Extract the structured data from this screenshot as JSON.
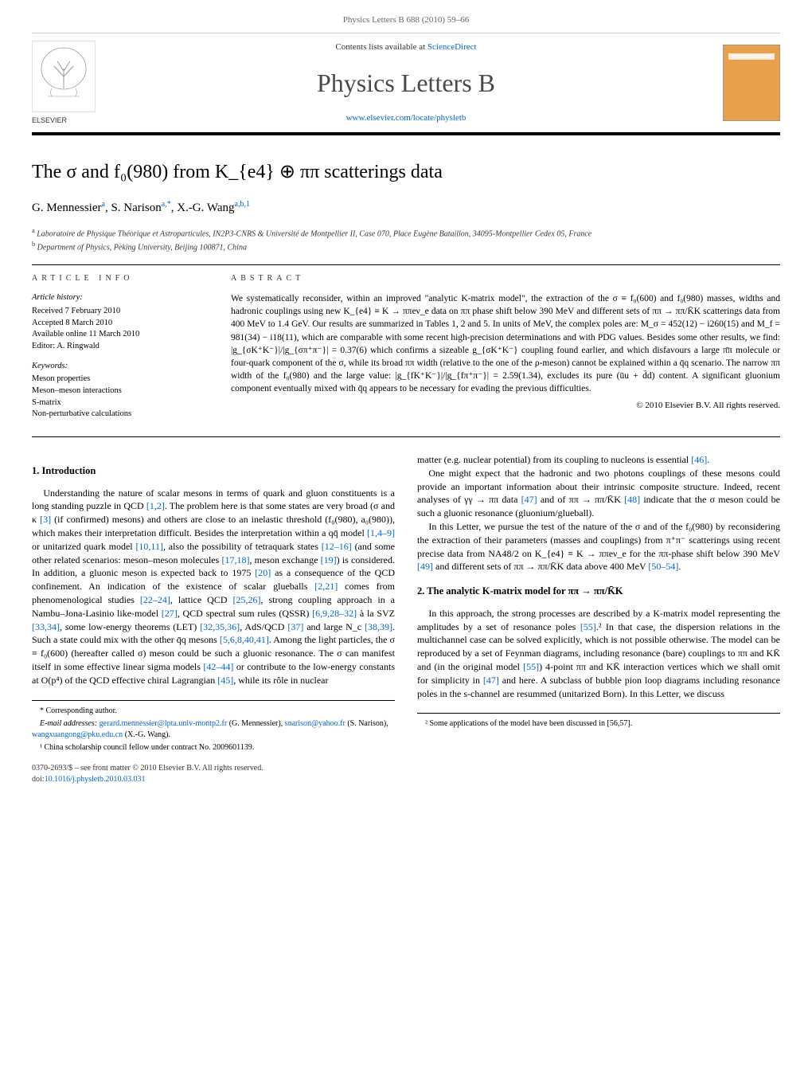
{
  "running_header": "Physics Letters B 688 (2010) 59–66",
  "banner": {
    "contents_prefix": "Contents lists available at ",
    "contents_link": "ScienceDirect",
    "journal_title": "Physics Letters B",
    "journal_url": "www.elsevier.com/locate/physletb",
    "publisher": "ELSEVIER",
    "cover_label": "PHYSICS LETTERS B"
  },
  "title": "The σ and f₀(980) from K_{e4} ⊕ ππ scatterings data",
  "authors_html": "G. Mennessier<sup>a</sup>, S. Narison<sup>a,*</sup>, X.-G. Wang<sup>a,b,1</sup>",
  "affiliations": {
    "a": "Laboratoire de Physique Théorique et Astroparticules, IN2P3-CNRS & Université de Montpellier II, Case 070, Place Eugène Bataillon, 34095-Montpellier Cedex 05, France",
    "b": "Department of Physics, Peking University, Beijing 100871, China"
  },
  "article_info": {
    "header": "article info",
    "history_head": "Article history:",
    "received": "Received 7 February 2010",
    "accepted": "Accepted 8 March 2010",
    "online": "Available online 11 March 2010",
    "editor": "Editor: A. Ringwald",
    "keywords_head": "Keywords:",
    "keywords": [
      "Meson properties",
      "Meson–meson interactions",
      "S-matrix",
      "Non-perturbative calculations"
    ]
  },
  "abstract": {
    "header": "abstract",
    "text": "We systematically reconsider, within an improved \"analytic K-matrix model\", the extraction of the σ ≡ f₀(600) and f₀(980) masses, widths and hadronic couplings using new K_{e4} ≡ K → ππeν_e data on ππ phase shift below 390 MeV and different sets of ππ → ππ/K̄K scatterings data from 400 MeV to 1.4 GeV. Our results are summarized in Tables 1, 2 and 5. In units of MeV, the complex poles are: M_σ = 452(12) − i260(15) and M_f = 981(34) − i18(11), which are comparable with some recent high-precision determinations and with PDG values. Besides some other results, we find: |g_{σK⁺K⁻}|/|g_{σπ⁺π⁻}| = 0.37(6) which confirms a sizeable g_{σK⁺K⁻} coupling found earlier, and which disfavours a large π̄π molecule or four-quark component of the σ, while its broad ππ width (relative to the one of the ρ-meson) cannot be explained within a q̄q scenario. The narrow ππ width of the f₀(980) and the large value: |g_{fK⁺K⁻}|/|g_{fπ⁺π⁻}| = 2.59(1.34), excludes its pure (ūu + d̄d) content. A significant gluonium component eventually mixed with q̄q appears to be necessary for evading the previous difficulties.",
    "copyright": "© 2010 Elsevier B.V. All rights reserved."
  },
  "sections": {
    "s1_head": "1. Introduction",
    "s1_p1": "Understanding the nature of scalar mesons in terms of quark and gluon constituents is a long standing puzzle in QCD [1,2]. The problem here is that some states are very broad (σ and κ [3] (if confirmed) mesons) and others are close to an inelastic threshold (f₀(980), a₀(980)), which makes their interpretation difficult. Besides the interpretation within a qq̄ model [1,4–9] or unitarized quark model [10,11], also the possibility of tetraquark states [12–16] (and some other related scenarios: meson–meson molecules [17,18], meson exchange [19]) is considered. In addition, a gluonic meson is expected back to 1975 [20] as a consequence of the QCD confinement. An indication of the existence of scalar glueballs [2,21] comes from phenomenological studies [22–24], lattice QCD [25,26], strong coupling approach in a Nambu–Jona-Lasinio like-model [27], QCD spectral sum rules (QSSR) [6,9,28–32] à la SVZ [33,34], some low-energy theorems (LET) [32,35,36], AdS/QCD [37] and large N_c [38,39]. Such a state could mix with the other q̄q mesons [5,6,8,40,41]. Among the light particles, the σ ≡ f₀(600) (hereafter called σ) meson could be such a gluonic resonance. The σ can manifest itself in some effective linear sigma models [42–44] or contribute to the low-energy constants at O(p⁴) of the QCD effective chiral Lagrangian [45], while its rôle in nuclear",
    "s1_p2": "matter (e.g. nuclear potential) from its coupling to nucleons is essential [46].",
    "s1_p3": "One might expect that the hadronic and two photons couplings of these mesons could provide an important information about their intrinsic composite structure. Indeed, recent analyses of γγ → ππ data [47] and of ππ → ππ/K̄K [48] indicate that the σ meson could be such a gluonic resonance (gluonium/glueball).",
    "s1_p4": "In this Letter, we pursue the test of the nature of the σ and of the f₀(980) by reconsidering the extraction of their parameters (masses and couplings) from π⁺π⁻ scatterings using recent precise data from NA48/2 on K_{e4} ≡ K → ππeν_e for the ππ-phase shift below 390 MeV [49] and different sets of ππ → ππ/K̄K data above 400 MeV [50–54].",
    "s2_head": "2. The analytic K-matrix model for ππ → ππ/K̄K",
    "s2_p1": "In this approach, the strong processes are described by a K-matrix model representing the amplitudes by a set of resonance poles [55].² In that case, the dispersion relations in the multichannel case can be solved explicitly, which is not possible otherwise. The model can be reproduced by a set of Feynman diagrams, including resonance (bare) couplings to ππ and KK̄ and (in the original model [55]) 4-point ππ and KK̄ interaction vertices which we shall omit for simplicity in [47] and here. A subclass of bubble pion loop diagrams including resonance poles in the s-channel are resummed (unitarized Born). In this Letter, we discuss"
  },
  "footnotes": {
    "corr_label": "* Corresponding author.",
    "email_label": "E-mail addresses:",
    "email1": "gerard.mennessier@lpta.univ-montp2.fr",
    "email1_who": " (G. Mennessier), ",
    "email2": "snarison@yahoo.fr",
    "email2_who": " (S. Narison), ",
    "email3": "wangxuangong@pku.edu.cn",
    "email3_who": " (X.-G. Wang).",
    "fn1": "¹ China scholarship council fellow under contract No. 2009601139.",
    "fn2": "² Some applications of the model have been discussed in [56,57]."
  },
  "footer": {
    "issn_line": "0370-2693/$ – see front matter © 2010 Elsevier B.V. All rights reserved.",
    "doi_label": "doi:",
    "doi": "10.1016/j.physletb.2010.03.031"
  },
  "colors": {
    "link": "#0066cc",
    "rule": "#000000",
    "text": "#000000",
    "muted": "#666666",
    "cover_bg": "#e8a04a"
  }
}
